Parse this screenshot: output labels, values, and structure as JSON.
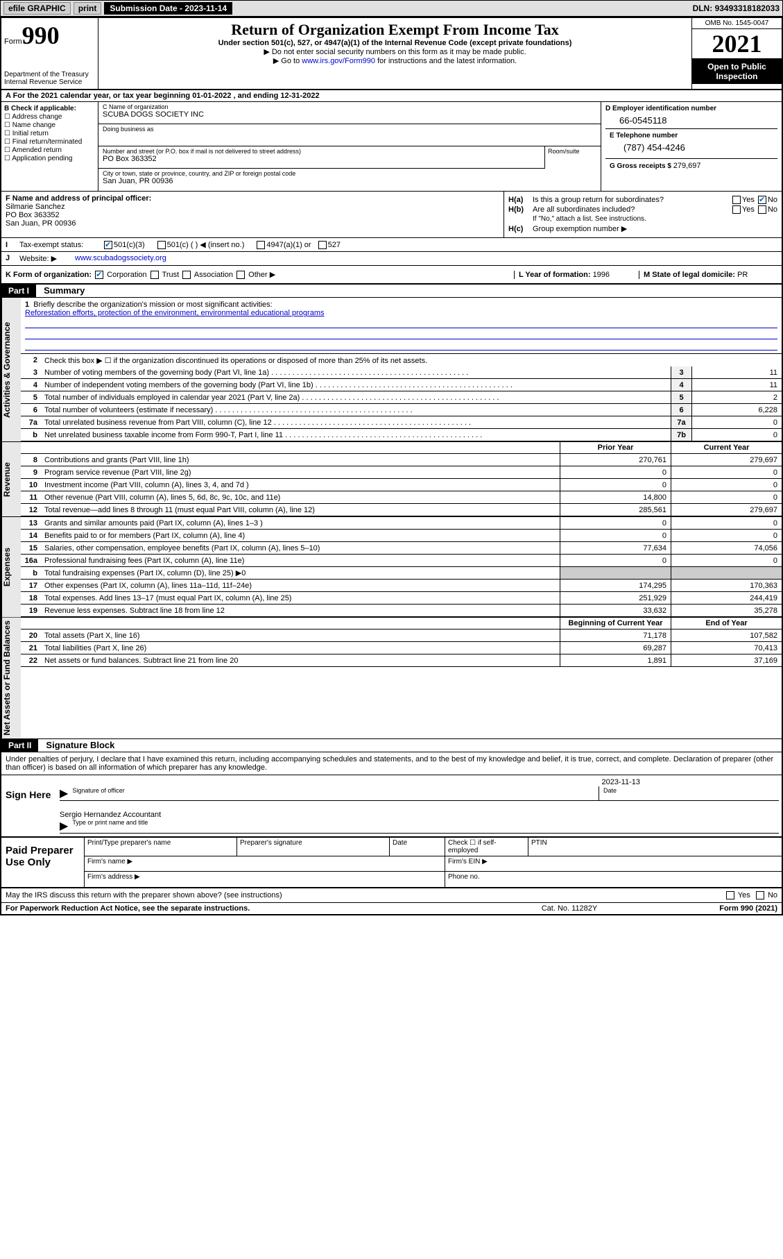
{
  "header": {
    "efile": "efile GRAPHIC",
    "print": "print",
    "sub_date_label": "Submission Date - ",
    "sub_date": "2023-11-14",
    "dln_label": "DLN: ",
    "dln": "93493318182033"
  },
  "top": {
    "form_label": "Form",
    "form_num": "990",
    "dept": "Department of the Treasury",
    "irs": "Internal Revenue Service",
    "title": "Return of Organization Exempt From Income Tax",
    "subtitle": "Under section 501(c), 527, or 4947(a)(1) of the Internal Revenue Code (except private foundations)",
    "note1": "▶ Do not enter social security numbers on this form as it may be made public.",
    "note2_pre": "▶ Go to ",
    "note2_link": "www.irs.gov/Form990",
    "note2_post": " for instructions and the latest information.",
    "omb": "OMB No. 1545-0047",
    "year": "2021",
    "inspect": "Open to Public Inspection"
  },
  "row_a": "A For the 2021 calendar year, or tax year beginning 01-01-2022   , and ending 12-31-2022",
  "sec_b": {
    "label": "B Check if applicable:",
    "items": [
      "Address change",
      "Name change",
      "Initial return",
      "Final return/terminated",
      "Amended return",
      "Application pending"
    ]
  },
  "sec_c": {
    "name_label": "C Name of organization",
    "name": "SCUBA DOGS SOCIETY INC",
    "dba_label": "Doing business as",
    "dba": "",
    "addr_label": "Number and street (or P.O. box if mail is not delivered to street address)",
    "room_label": "Room/suite",
    "addr": "PO Box 363352",
    "city_label": "City or town, state or province, country, and ZIP or foreign postal code",
    "city": "San Juan, PR  00936"
  },
  "sec_d": {
    "label": "D Employer identification number",
    "val": "66-0545118"
  },
  "sec_e": {
    "label": "E Telephone number",
    "val": "(787) 454-4246"
  },
  "sec_g": {
    "label": "G Gross receipts $ ",
    "val": "279,697"
  },
  "sec_f": {
    "label": "F Name and address of principal officer:",
    "name": "Silmarie Sanchez",
    "addr1": "PO Box 363352",
    "addr2": "San Juan, PR  00936"
  },
  "sec_h": {
    "ha_label": "H(a)",
    "ha_text": "Is this a group return for subordinates?",
    "hb_label": "H(b)",
    "hb_text": "Are all subordinates included?",
    "hb_note": "If \"No,\" attach a list. See instructions.",
    "hc_label": "H(c)",
    "hc_text": "Group exemption number ▶",
    "yes": "Yes",
    "no": "No"
  },
  "row_i": {
    "label": "I",
    "text": "Tax-exempt status:",
    "opts": [
      "501(c)(3)",
      "501(c) (  ) ◀ (insert no.)",
      "4947(a)(1) or",
      "527"
    ]
  },
  "row_j": {
    "label": "J",
    "text": "Website: ▶",
    "url": "www.scubadogssociety.org"
  },
  "row_k": {
    "label": "K Form of organization:",
    "opts": [
      "Corporation",
      "Trust",
      "Association",
      "Other ▶"
    ],
    "l_label": "L Year of formation: ",
    "l_val": "1996",
    "m_label": "M State of legal domicile: ",
    "m_val": "PR"
  },
  "part1": {
    "hdr": "Part I",
    "title": "Summary",
    "vtab_gov": "Activities & Governance",
    "vtab_rev": "Revenue",
    "vtab_exp": "Expenses",
    "vtab_net": "Net Assets or Fund Balances",
    "line1_label": "1",
    "line1_text": "Briefly describe the organization's mission or most significant activities:",
    "line1_val": "Reforestation efforts, protection of the environment, environmental educational programs",
    "line2": "Check this box ▶ ☐  if the organization discontinued its operations or disposed of more than 25% of its net assets.",
    "lines_gov": [
      {
        "n": "3",
        "t": "Number of voting members of the governing body (Part VI, line 1a)",
        "c": "3",
        "v": "11"
      },
      {
        "n": "4",
        "t": "Number of independent voting members of the governing body (Part VI, line 1b)",
        "c": "4",
        "v": "11"
      },
      {
        "n": "5",
        "t": "Total number of individuals employed in calendar year 2021 (Part V, line 2a)",
        "c": "5",
        "v": "2"
      },
      {
        "n": "6",
        "t": "Total number of volunteers (estimate if necessary)",
        "c": "6",
        "v": "6,228"
      },
      {
        "n": "7a",
        "t": "Total unrelated business revenue from Part VIII, column (C), line 12",
        "c": "7a",
        "v": "0"
      },
      {
        "n": "b",
        "t": "Net unrelated business taxable income from Form 990-T, Part I, line 11",
        "c": "7b",
        "v": "0"
      }
    ],
    "col_prior": "Prior Year",
    "col_current": "Current Year",
    "col_begin": "Beginning of Current Year",
    "col_end": "End of Year",
    "lines_rev": [
      {
        "n": "8",
        "t": "Contributions and grants (Part VIII, line 1h)",
        "p": "270,761",
        "c": "279,697"
      },
      {
        "n": "9",
        "t": "Program service revenue (Part VIII, line 2g)",
        "p": "0",
        "c": "0"
      },
      {
        "n": "10",
        "t": "Investment income (Part VIII, column (A), lines 3, 4, and 7d )",
        "p": "0",
        "c": "0"
      },
      {
        "n": "11",
        "t": "Other revenue (Part VIII, column (A), lines 5, 6d, 8c, 9c, 10c, and 11e)",
        "p": "14,800",
        "c": "0"
      },
      {
        "n": "12",
        "t": "Total revenue—add lines 8 through 11 (must equal Part VIII, column (A), line 12)",
        "p": "285,561",
        "c": "279,697"
      }
    ],
    "lines_exp": [
      {
        "n": "13",
        "t": "Grants and similar amounts paid (Part IX, column (A), lines 1–3 )",
        "p": "0",
        "c": "0"
      },
      {
        "n": "14",
        "t": "Benefits paid to or for members (Part IX, column (A), line 4)",
        "p": "0",
        "c": "0"
      },
      {
        "n": "15",
        "t": "Salaries, other compensation, employee benefits (Part IX, column (A), lines 5–10)",
        "p": "77,634",
        "c": "74,056"
      },
      {
        "n": "16a",
        "t": "Professional fundraising fees (Part IX, column (A), line 11e)",
        "p": "0",
        "c": "0"
      },
      {
        "n": "b",
        "t": "Total fundraising expenses (Part IX, column (D), line 25) ▶0",
        "p": "",
        "c": "",
        "grey": true
      },
      {
        "n": "17",
        "t": "Other expenses (Part IX, column (A), lines 11a–11d, 11f–24e)",
        "p": "174,295",
        "c": "170,363"
      },
      {
        "n": "18",
        "t": "Total expenses. Add lines 13–17 (must equal Part IX, column (A), line 25)",
        "p": "251,929",
        "c": "244,419"
      },
      {
        "n": "19",
        "t": "Revenue less expenses. Subtract line 18 from line 12",
        "p": "33,632",
        "c": "35,278"
      }
    ],
    "lines_net": [
      {
        "n": "20",
        "t": "Total assets (Part X, line 16)",
        "p": "71,178",
        "c": "107,582"
      },
      {
        "n": "21",
        "t": "Total liabilities (Part X, line 26)",
        "p": "69,287",
        "c": "70,413"
      },
      {
        "n": "22",
        "t": "Net assets or fund balances. Subtract line 21 from line 20",
        "p": "1,891",
        "c": "37,169"
      }
    ]
  },
  "part2": {
    "hdr": "Part II",
    "title": "Signature Block",
    "decl": "Under penalties of perjury, I declare that I have examined this return, including accompanying schedules and statements, and to the best of my knowledge and belief, it is true, correct, and complete. Declaration of preparer (other than officer) is based on all information of which preparer has any knowledge.",
    "sign_here": "Sign Here",
    "sig_officer": "Signature of officer",
    "sig_date": "Date",
    "sig_date_val": "2023-11-13",
    "sig_name": "Sergio Hernandez Accountant",
    "sig_name_label": "Type or print name and title",
    "paid": "Paid Preparer Use Only",
    "prep_name": "Print/Type preparer's name",
    "prep_sig": "Preparer's signature",
    "prep_date": "Date",
    "prep_check": "Check ☐ if self-employed",
    "prep_ptin": "PTIN",
    "firm_name": "Firm's name  ▶",
    "firm_ein": "Firm's EIN ▶",
    "firm_addr": "Firm's address ▶",
    "firm_phone": "Phone no."
  },
  "footer": {
    "discuss": "May the IRS discuss this return with the preparer shown above? (see instructions)",
    "yes": "Yes",
    "no": "No",
    "pra": "For Paperwork Reduction Act Notice, see the separate instructions.",
    "cat": "Cat. No. 11282Y",
    "form": "Form 990 (2021)"
  }
}
